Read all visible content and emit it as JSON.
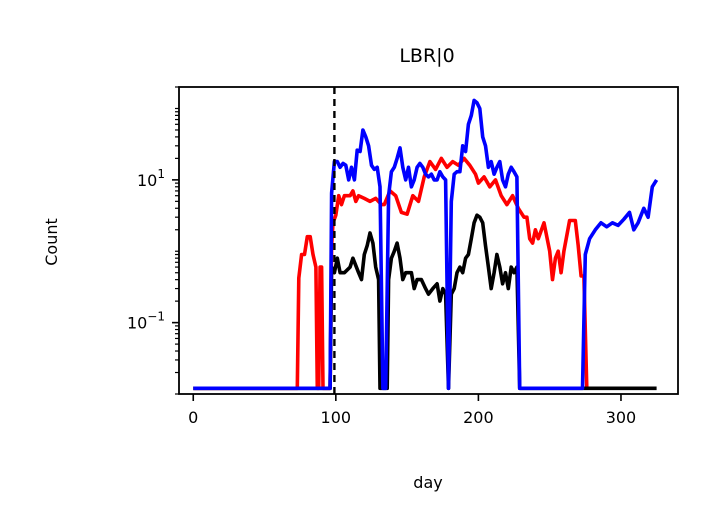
{
  "chart_data": {
    "type": "line",
    "title": "LBR|0",
    "xlabel": "day",
    "ylabel": "Count",
    "xlim": [
      -10,
      340
    ],
    "xticks": [
      0,
      100,
      200,
      300
    ],
    "y_scale": "log",
    "ylim": [
      0.01,
      200
    ],
    "yticks": [
      {
        "value": 0.1,
        "base": "10",
        "exp": "−1"
      },
      {
        "value": 10,
        "base": "10",
        "exp": "1"
      }
    ],
    "vline": {
      "x": 99,
      "style": "dashed",
      "color": "#000000"
    },
    "grid": false,
    "legend": "none",
    "series": [
      {
        "color": "#ff0000",
        "points": [
          [
            0,
            0.012
          ],
          [
            73,
            0.012
          ],
          [
            74,
            0.42
          ],
          [
            76,
            0.9
          ],
          [
            78,
            0.9
          ],
          [
            80,
            1.6
          ],
          [
            82,
            1.6
          ],
          [
            84,
            0.9
          ],
          [
            86,
            0.6
          ],
          [
            87,
            0.012
          ],
          [
            88,
            0.012
          ],
          [
            89,
            0.6
          ],
          [
            90,
            0.6
          ],
          [
            91,
            0.012
          ],
          [
            96,
            0.012
          ],
          [
            97,
            1.2
          ],
          [
            98,
            2.5
          ],
          [
            100,
            3.2
          ],
          [
            102,
            6
          ],
          [
            104,
            4.5
          ],
          [
            106,
            6
          ],
          [
            108,
            6
          ],
          [
            110,
            6
          ],
          [
            112,
            7
          ],
          [
            114,
            5
          ],
          [
            116,
            6
          ],
          [
            120,
            5.5
          ],
          [
            124,
            5
          ],
          [
            128,
            5.5
          ],
          [
            132,
            4.5
          ],
          [
            134,
            4.5
          ],
          [
            138,
            7
          ],
          [
            142,
            6
          ],
          [
            146,
            3.5
          ],
          [
            150,
            3.3
          ],
          [
            154,
            6
          ],
          [
            158,
            5
          ],
          [
            162,
            11
          ],
          [
            166,
            18
          ],
          [
            170,
            14
          ],
          [
            174,
            20
          ],
          [
            178,
            15
          ],
          [
            182,
            18
          ],
          [
            186,
            16
          ],
          [
            190,
            20
          ],
          [
            194,
            16
          ],
          [
            198,
            12
          ],
          [
            200,
            9
          ],
          [
            204,
            11
          ],
          [
            208,
            8
          ],
          [
            212,
            10
          ],
          [
            216,
            6
          ],
          [
            220,
            4.5
          ],
          [
            224,
            6
          ],
          [
            228,
            4
          ],
          [
            232,
            3
          ],
          [
            234,
            3
          ],
          [
            236,
            1.5
          ],
          [
            238,
            1.3
          ],
          [
            240,
            2
          ],
          [
            242,
            1.5
          ],
          [
            246,
            2.5
          ],
          [
            250,
            1
          ],
          [
            252,
            0.4
          ],
          [
            254,
            0.8
          ],
          [
            256,
            1
          ],
          [
            258,
            0.5
          ],
          [
            260,
            1
          ],
          [
            264,
            2.7
          ],
          [
            268,
            2.7
          ],
          [
            270,
            1.2
          ],
          [
            272,
            0.45
          ],
          [
            274,
            0.45
          ],
          [
            276,
            0.012
          ]
        ]
      },
      {
        "color": "#000000",
        "points": [
          [
            0,
            0.012
          ],
          [
            96,
            0.012
          ],
          [
            97,
            0.6
          ],
          [
            99,
            0.5
          ],
          [
            101,
            0.8
          ],
          [
            103,
            0.5
          ],
          [
            106,
            0.5
          ],
          [
            110,
            0.6
          ],
          [
            112,
            0.8
          ],
          [
            116,
            0.5
          ],
          [
            118,
            0.4
          ],
          [
            120,
            0.9
          ],
          [
            122,
            1.2
          ],
          [
            124,
            1.8
          ],
          [
            126,
            1.3
          ],
          [
            128,
            0.6
          ],
          [
            130,
            0.4
          ],
          [
            131,
            0.012
          ],
          [
            136,
            0.012
          ],
          [
            137,
            0.4
          ],
          [
            139,
            0.8
          ],
          [
            141,
            1
          ],
          [
            143,
            1.3
          ],
          [
            145,
            0.8
          ],
          [
            147,
            0.4
          ],
          [
            149,
            0.5
          ],
          [
            153,
            0.5
          ],
          [
            155,
            0.3
          ],
          [
            157,
            0.4
          ],
          [
            160,
            0.4
          ],
          [
            163,
            0.3
          ],
          [
            165,
            0.25
          ],
          [
            168,
            0.3
          ],
          [
            171,
            0.35
          ],
          [
            173,
            0.2
          ],
          [
            175,
            0.3
          ],
          [
            177,
            0.25
          ],
          [
            179,
            0.012
          ],
          [
            181,
            0.25
          ],
          [
            183,
            0.3
          ],
          [
            185,
            0.5
          ],
          [
            187,
            0.6
          ],
          [
            189,
            0.5
          ],
          [
            191,
            0.8
          ],
          [
            193,
            0.9
          ],
          [
            195,
            1.5
          ],
          [
            197,
            2.5
          ],
          [
            199,
            3.2
          ],
          [
            201,
            3
          ],
          [
            203,
            2.5
          ],
          [
            205,
            1.2
          ],
          [
            207,
            0.6
          ],
          [
            209,
            0.3
          ],
          [
            211,
            0.5
          ],
          [
            213,
            0.9
          ],
          [
            215,
            0.6
          ],
          [
            217,
            0.35
          ],
          [
            219,
            0.5
          ],
          [
            221,
            0.3
          ],
          [
            223,
            0.6
          ],
          [
            225,
            0.5
          ],
          [
            227,
            0.6
          ],
          [
            229,
            0.012
          ],
          [
            325,
            0.012
          ]
        ]
      },
      {
        "color": "#0000ff",
        "points": [
          [
            0,
            0.012
          ],
          [
            96,
            0.012
          ],
          [
            97,
            6.5
          ],
          [
            99,
            18
          ],
          [
            101,
            18
          ],
          [
            103,
            15
          ],
          [
            105,
            17
          ],
          [
            107,
            16
          ],
          [
            109,
            10
          ],
          [
            111,
            15
          ],
          [
            113,
            10
          ],
          [
            115,
            26
          ],
          [
            117,
            25
          ],
          [
            119,
            50
          ],
          [
            121,
            40
          ],
          [
            123,
            30
          ],
          [
            125,
            16
          ],
          [
            127,
            14
          ],
          [
            129,
            15
          ],
          [
            131,
            8
          ],
          [
            133,
            0.012
          ],
          [
            135,
            0.012
          ],
          [
            137,
            6
          ],
          [
            139,
            13
          ],
          [
            141,
            15
          ],
          [
            143,
            20
          ],
          [
            145,
            28
          ],
          [
            147,
            15
          ],
          [
            149,
            10
          ],
          [
            151,
            15
          ],
          [
            153,
            8
          ],
          [
            155,
            10
          ],
          [
            157,
            15
          ],
          [
            159,
            17
          ],
          [
            161,
            15
          ],
          [
            163,
            12
          ],
          [
            165,
            11
          ],
          [
            167,
            12
          ],
          [
            169,
            10
          ],
          [
            171,
            10
          ],
          [
            173,
            13
          ],
          [
            175,
            11
          ],
          [
            177,
            10
          ],
          [
            179,
            0.012
          ],
          [
            181,
            5
          ],
          [
            183,
            12
          ],
          [
            185,
            13
          ],
          [
            187,
            13
          ],
          [
            189,
            30
          ],
          [
            191,
            25
          ],
          [
            193,
            60
          ],
          [
            195,
            80
          ],
          [
            197,
            130
          ],
          [
            199,
            120
          ],
          [
            201,
            100
          ],
          [
            203,
            40
          ],
          [
            205,
            30
          ],
          [
            207,
            15
          ],
          [
            209,
            18
          ],
          [
            211,
            12
          ],
          [
            213,
            15
          ],
          [
            215,
            18
          ],
          [
            217,
            10
          ],
          [
            219,
            8
          ],
          [
            221,
            12
          ],
          [
            223,
            15
          ],
          [
            225,
            13
          ],
          [
            227,
            11
          ],
          [
            229,
            0.012
          ],
          [
            273,
            0.012
          ],
          [
            275,
            0.9
          ],
          [
            278,
            1.5
          ],
          [
            282,
            2
          ],
          [
            286,
            2.5
          ],
          [
            290,
            2.2
          ],
          [
            294,
            2.5
          ],
          [
            298,
            2.3
          ],
          [
            302,
            2.8
          ],
          [
            306,
            3.5
          ],
          [
            309,
            2
          ],
          [
            312,
            2.5
          ],
          [
            316,
            4
          ],
          [
            319,
            3
          ],
          [
            322,
            8
          ],
          [
            325,
            10
          ]
        ]
      }
    ]
  }
}
